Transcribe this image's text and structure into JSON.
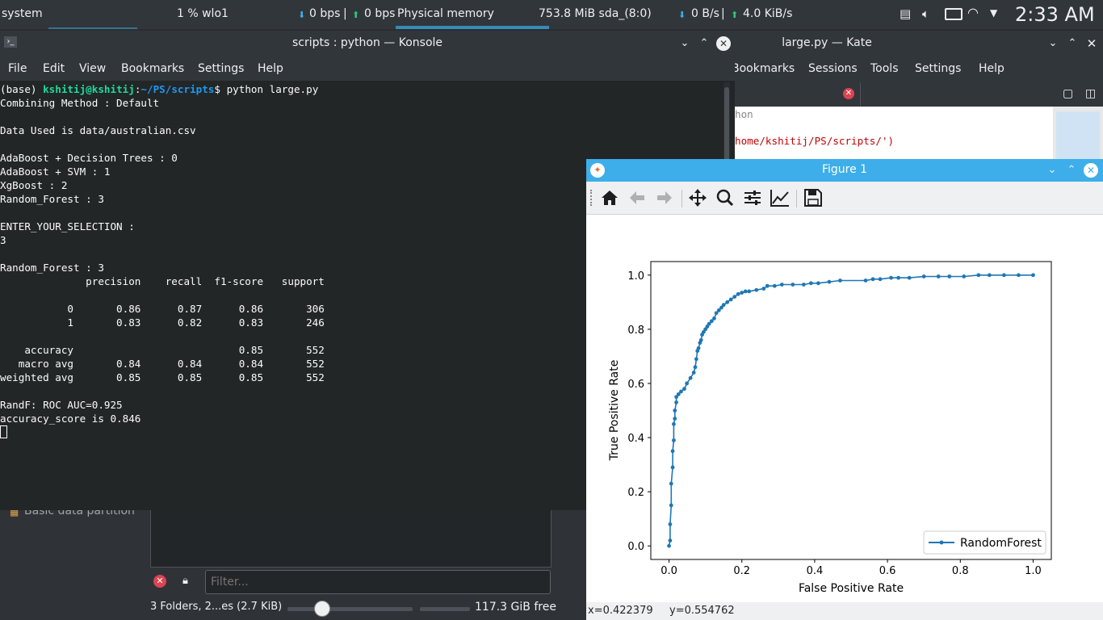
{
  "panel": {
    "system": "system",
    "cpu": "1 % wlo1",
    "net_down": "0 bps",
    "net_up": "0 bps",
    "memory_label": "Physical memory",
    "memory_value": "753.8 MiB sda_(8:0)",
    "disk_read": "0 B/s",
    "disk_write": "4.0 KiB/s",
    "clock": "2:33 AM"
  },
  "konsole": {
    "title": "scripts : python — Konsole",
    "menu": [
      "File",
      "Edit",
      "View",
      "Bookmarks",
      "Settings",
      "Help"
    ],
    "prompt_base": "(base) ",
    "prompt_user": "kshitij@kshitij",
    "prompt_sep": ":",
    "prompt_path": "~/PS/scripts",
    "prompt_cmd": "$ python large.py",
    "lines": [
      "Combining Method : Default",
      "",
      "Data Used is data/australian.csv",
      "",
      "AdaBoost + Decision Trees : 0",
      "AdaBoost + SVM : 1",
      "XgBoost : 2",
      "Random_Forest : 3",
      "",
      "ENTER_YOUR_SELECTION :",
      "3",
      "",
      "Random_Forest : 3",
      "              precision    recall  f1-score   support",
      "",
      "           0       0.86      0.87      0.86       306",
      "           1       0.83      0.82      0.83       246",
      "",
      "    accuracy                           0.85       552",
      "   macro avg       0.84      0.84      0.84       552",
      "weighted avg       0.85      0.85      0.85       552",
      "",
      "RandF: ROC AUC=0.925",
      "accuracy_score is 0.846"
    ]
  },
  "kate": {
    "title": "large.py — Kate",
    "menu": [
      "Bookmarks",
      "Sessions",
      "Tools",
      "Settings",
      "Help"
    ],
    "code_fragment_1": "hon",
    "code_fragment_2": "home/kshitij/PS/scripts/')"
  },
  "dolphin": {
    "partition_label": "Basic data partition",
    "filter_placeholder": "Filter...",
    "status": "3 Folders, 2...es (2.7 KiB)",
    "free_space": "117.3 GiB free"
  },
  "figure": {
    "title": "Figure 1",
    "status_x": "x=0.422379",
    "status_y": "y=0.554762"
  },
  "chart_data": {
    "type": "line",
    "xlabel": "False Positive Rate",
    "ylabel": "True Positive Rate",
    "xlim": [
      -0.05,
      1.05
    ],
    "ylim": [
      -0.05,
      1.05
    ],
    "xticks": [
      "0.0",
      "0.2",
      "0.4",
      "0.6",
      "0.8",
      "1.0"
    ],
    "yticks": [
      "0.0",
      "0.2",
      "0.4",
      "0.6",
      "0.8",
      "1.0"
    ],
    "legend_position": "lower-right",
    "series": [
      {
        "name": "RandomForest",
        "color": "#1f77b4",
        "x": [
          0.0,
          0.003,
          0.003,
          0.006,
          0.006,
          0.01,
          0.01,
          0.013,
          0.013,
          0.016,
          0.016,
          0.02,
          0.02,
          0.026,
          0.033,
          0.042,
          0.049,
          0.059,
          0.068,
          0.072,
          0.075,
          0.078,
          0.081,
          0.085,
          0.088,
          0.091,
          0.095,
          0.1,
          0.105,
          0.11,
          0.117,
          0.124,
          0.13,
          0.137,
          0.144,
          0.15,
          0.16,
          0.17,
          0.18,
          0.19,
          0.2,
          0.21,
          0.22,
          0.24,
          0.26,
          0.27,
          0.29,
          0.31,
          0.34,
          0.37,
          0.39,
          0.41,
          0.44,
          0.47,
          0.54,
          0.56,
          0.58,
          0.61,
          0.63,
          0.66,
          0.7,
          0.74,
          0.77,
          0.81,
          0.85,
          0.88,
          0.92,
          0.96,
          1.0
        ],
        "y": [
          0.0,
          0.02,
          0.08,
          0.15,
          0.23,
          0.29,
          0.35,
          0.39,
          0.45,
          0.47,
          0.5,
          0.53,
          0.55,
          0.56,
          0.57,
          0.58,
          0.6,
          0.62,
          0.64,
          0.66,
          0.69,
          0.72,
          0.73,
          0.75,
          0.76,
          0.78,
          0.79,
          0.8,
          0.81,
          0.82,
          0.83,
          0.84,
          0.86,
          0.87,
          0.88,
          0.89,
          0.9,
          0.91,
          0.92,
          0.93,
          0.935,
          0.94,
          0.94,
          0.945,
          0.95,
          0.96,
          0.96,
          0.965,
          0.965,
          0.965,
          0.97,
          0.97,
          0.975,
          0.98,
          0.98,
          0.985,
          0.985,
          0.99,
          0.99,
          0.99,
          0.995,
          0.995,
          0.995,
          0.995,
          1.0,
          1.0,
          1.0,
          1.0,
          1.0
        ]
      }
    ]
  }
}
